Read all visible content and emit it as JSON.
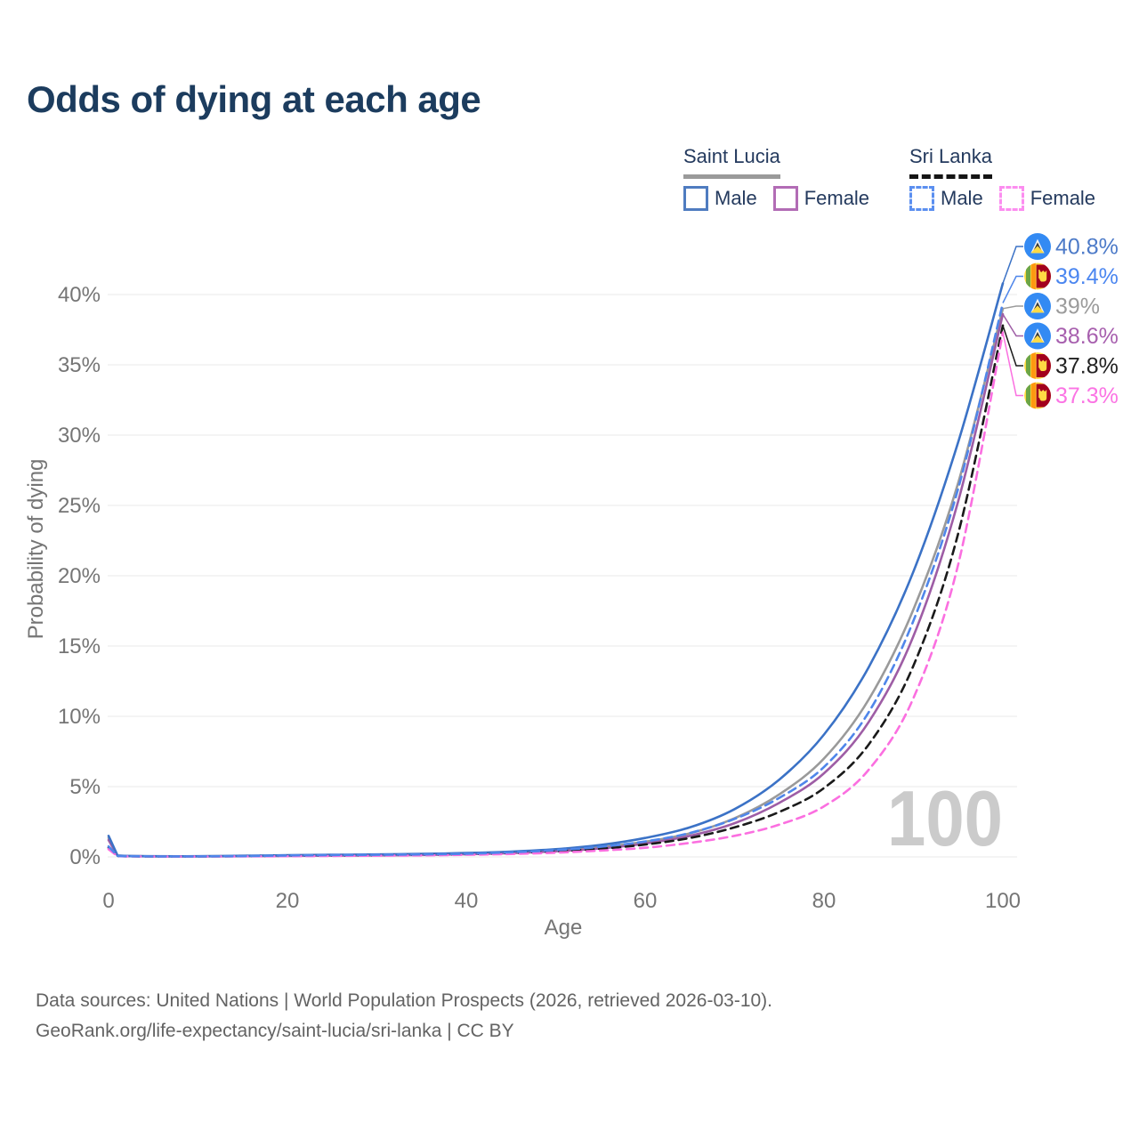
{
  "title": "Odds of dying at each age",
  "legend": {
    "groups": [
      {
        "name": "Saint Lucia",
        "line_style": "solid",
        "underline_color": "#9a9a9a",
        "items": [
          {
            "label": "Male",
            "color": "#4f7cc0",
            "dash": false
          },
          {
            "label": "Female",
            "color": "#b26cb5",
            "dash": false
          }
        ]
      },
      {
        "name": "Sri Lanka",
        "line_style": "dashed",
        "underline_color": "#141414",
        "items": [
          {
            "label": "Male",
            "color": "#5b8ff0",
            "dash": true
          },
          {
            "label": "Female",
            "color": "#fc8df0",
            "dash": true
          }
        ]
      }
    ]
  },
  "chart_data": {
    "type": "line",
    "title": "Odds of dying at each age",
    "xlabel": "Age",
    "ylabel": "Probability of dying",
    "xlim": [
      0,
      100
    ],
    "ylim": [
      0,
      42
    ],
    "x_ticks": [
      0,
      20,
      40,
      60,
      80,
      100
    ],
    "y_ticks": [
      0,
      5,
      10,
      15,
      20,
      25,
      30,
      35,
      40
    ],
    "y_tick_suffix": "%",
    "grid": "horizontal-only",
    "watermark": "100",
    "x": [
      0,
      1,
      2,
      5,
      10,
      15,
      20,
      25,
      30,
      35,
      40,
      45,
      50,
      55,
      60,
      65,
      70,
      75,
      80,
      85,
      90,
      95,
      100
    ],
    "series": [
      {
        "name": "Saint Lucia Total",
        "flag": "saint-lucia",
        "color": "#9a9a9a",
        "dash": false,
        "values": [
          1.35,
          0.09,
          0.06,
          0.045,
          0.045,
          0.07,
          0.1,
          0.12,
          0.15,
          0.18,
          0.23,
          0.32,
          0.46,
          0.7,
          1.08,
          1.68,
          2.75,
          4.45,
          7.0,
          11.2,
          17.6,
          26.6,
          39.0
        ]
      },
      {
        "name": "Saint Lucia Female",
        "flag": "saint-lucia",
        "color": "#9e5da5",
        "dash": false,
        "values": [
          1.2,
          0.08,
          0.055,
          0.04,
          0.04,
          0.05,
          0.07,
          0.09,
          0.11,
          0.14,
          0.19,
          0.27,
          0.4,
          0.6,
          0.95,
          1.5,
          2.4,
          3.85,
          5.95,
          9.6,
          15.7,
          25.3,
          38.6
        ]
      },
      {
        "name": "Saint Lucia Male",
        "flag": "saint-lucia",
        "color": "#3b72c6",
        "dash": false,
        "values": [
          1.5,
          0.1,
          0.07,
          0.05,
          0.05,
          0.08,
          0.12,
          0.15,
          0.18,
          0.22,
          0.28,
          0.38,
          0.55,
          0.85,
          1.35,
          2.1,
          3.4,
          5.5,
          8.7,
          13.5,
          20.3,
          29.5,
          40.8
        ]
      },
      {
        "name": "Sri Lanka Total",
        "flag": "sri-lanka",
        "color": "#1a1a1a",
        "dash": true,
        "values": [
          0.65,
          0.06,
          0.045,
          0.035,
          0.035,
          0.05,
          0.08,
          0.1,
          0.12,
          0.15,
          0.19,
          0.27,
          0.4,
          0.58,
          0.88,
          1.35,
          2.1,
          3.2,
          4.9,
          8.0,
          13.6,
          23.0,
          37.8
        ]
      },
      {
        "name": "Sri Lanka Female",
        "flag": "sri-lanka",
        "color": "#fb6fe0",
        "dash": true,
        "values": [
          0.55,
          0.05,
          0.04,
          0.03,
          0.03,
          0.04,
          0.05,
          0.07,
          0.09,
          0.11,
          0.15,
          0.21,
          0.3,
          0.45,
          0.65,
          1.0,
          1.5,
          2.3,
          3.6,
          6.2,
          11.3,
          20.8,
          37.3
        ]
      },
      {
        "name": "Sri Lanka Male",
        "flag": "sri-lanka",
        "color": "#4f86ea",
        "dash": true,
        "values": [
          0.75,
          0.07,
          0.05,
          0.04,
          0.04,
          0.06,
          0.1,
          0.13,
          0.15,
          0.18,
          0.23,
          0.33,
          0.48,
          0.72,
          1.1,
          1.7,
          2.7,
          4.2,
          6.4,
          10.3,
          16.8,
          26.2,
          39.4
        ]
      }
    ],
    "end_labels": [
      {
        "series": 2,
        "text": "40.8%",
        "color": "#4c7ac8",
        "flag": "saint-lucia"
      },
      {
        "series": 5,
        "text": "39.4%",
        "color": "#4b86f0",
        "flag": "sri-lanka"
      },
      {
        "series": 0,
        "text": "39%",
        "color": "#9b9b9b",
        "flag": "saint-lucia"
      },
      {
        "series": 1,
        "text": "38.6%",
        "color": "#a75fae",
        "flag": "saint-lucia"
      },
      {
        "series": 3,
        "text": "37.8%",
        "color": "#222222",
        "flag": "sri-lanka"
      },
      {
        "series": 4,
        "text": "37.3%",
        "color": "#fb74e4",
        "flag": "sri-lanka"
      }
    ]
  },
  "footer": {
    "line1": "Data sources: United Nations | World Population Prospects (2026, retrieved 2026-03-10).",
    "line2": "GeoRank.org/life-expectancy/saint-lucia/sri-lanka | CC BY"
  }
}
